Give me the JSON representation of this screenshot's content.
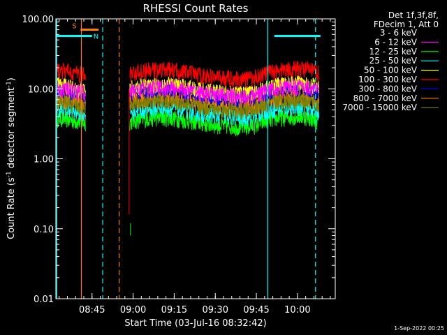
{
  "chart_data": {
    "type": "line",
    "title": "RHESSI Count Rates",
    "xlabel": "Start Time (03-Jul-16 08:32:42)",
    "ylabel_main": "Count Rate (s",
    "ylabel_sup": "-1",
    "ylabel_tail": " detector segment",
    "ylabel_sup2": "-1",
    "ylabel_close": ")",
    "y_scale": "log",
    "ylim": [
      0.01,
      100
    ],
    "xlim_minutes": [
      8.53,
      10.23
    ],
    "y_ticks": [
      {
        "value": 100,
        "label": "100.00"
      },
      {
        "value": 10,
        "label": "10.00"
      },
      {
        "value": 1,
        "label": "1.00"
      },
      {
        "value": 0.1,
        "label": "0.10"
      },
      {
        "value": 0.01,
        "label": "0.01"
      }
    ],
    "x_ticks": [
      {
        "value": 8.75,
        "label": "08:45"
      },
      {
        "value": 9.0,
        "label": "09:00"
      },
      {
        "value": 9.25,
        "label": "09:15"
      },
      {
        "value": 9.5,
        "label": "09:30"
      },
      {
        "value": 9.75,
        "label": "09:45"
      },
      {
        "value": 10.0,
        "label": "10:00"
      }
    ],
    "legend": {
      "header": [
        "Det 1f,3f,8f,",
        "FDecim 1, Att 0"
      ],
      "placement": "top-right"
    },
    "series": [
      {
        "name": "3 - 6 keV",
        "color": "#000000",
        "level": 8.5,
        "visible": false
      },
      {
        "name": "6 - 12 keV",
        "color": "#ff00ff",
        "level": 9.5
      },
      {
        "name": "12 - 25 keV",
        "color": "#00ff00",
        "level": 3.5
      },
      {
        "name": "25 - 50 keV",
        "color": "#00ffff",
        "level": 4.8
      },
      {
        "name": "50 - 100 keV",
        "color": "#ffff00",
        "level": 10.5
      },
      {
        "name": "100 - 300 keV",
        "color": "#ff0000",
        "level": 17
      },
      {
        "name": "300 - 800 keV",
        "color": "#0000ff",
        "level": 9.0
      },
      {
        "name": "800 - 7000 keV",
        "color": "#ff8000",
        "level": 6.8
      },
      {
        "name": "7000 - 15000 keV",
        "color": "#808000",
        "level": 6.0
      }
    ],
    "data_gap": {
      "start": 8.71,
      "end": 8.98
    },
    "attenuator_bars": [
      {
        "label": "S",
        "color": "#ff8000",
        "x_start": 8.68,
        "x_end": 8.79,
        "y": 70
      },
      {
        "label": "N",
        "color": "#00ffff",
        "x_start": 8.53,
        "x_end": 8.75,
        "y": 57
      },
      {
        "label": "",
        "color": "#00ffff",
        "x_start": 9.86,
        "x_end": 10.14,
        "y": 57
      }
    ],
    "vertical_lines": [
      {
        "x": 8.535,
        "color": "#00ffff",
        "style": "solid"
      },
      {
        "x": 8.685,
        "color": "#ff8000",
        "style": "solid"
      },
      {
        "x": 8.815,
        "color": "#00ffff",
        "style": "dashed"
      },
      {
        "x": 8.915,
        "color": "#ff8000",
        "style": "dashed"
      },
      {
        "x": 9.82,
        "color": "#00ffff",
        "style": "solid"
      },
      {
        "x": 10.11,
        "color": "#00ffff",
        "style": "dashed"
      }
    ],
    "grid": false
  },
  "footer": {
    "timestamp": "1-Sep-2022 00:25"
  }
}
